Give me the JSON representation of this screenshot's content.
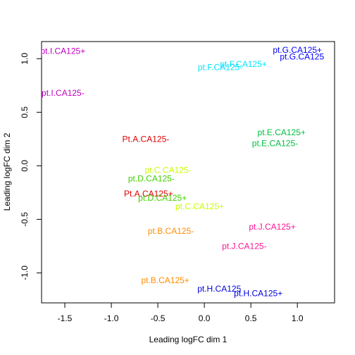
{
  "chart_data": {
    "type": "scatter",
    "title": "",
    "xlabel": "Leading logFC dim 1",
    "ylabel": "Leading logFC dim 2",
    "xlim": [
      -1.75,
      1.4
    ],
    "ylim": [
      -1.28,
      1.16
    ],
    "x_ticks": [
      -1.5,
      -1.0,
      -0.5,
      0.0,
      0.5,
      1.0
    ],
    "x_tick_labels": [
      "-1.5",
      "-1.0",
      "-0.5",
      "0.0",
      "0.5",
      "1.0"
    ],
    "y_ticks": [
      -1.0,
      -0.5,
      0.0,
      0.5,
      1.0
    ],
    "y_tick_labels": [
      "-1.0",
      "-0.5",
      "0.0",
      "0.5",
      "1.0"
    ],
    "grid": false,
    "points": [
      {
        "label": "pt.I.CA125+",
        "x": -1.52,
        "y": 1.07,
        "color": "#c000c0"
      },
      {
        "label": "pt.I.CA125-",
        "x": -1.52,
        "y": 0.68,
        "color": "#c000c0"
      },
      {
        "label": "pt.G.CA125+",
        "x": 1.0,
        "y": 1.08,
        "color": "#0000ff"
      },
      {
        "label": "pt.G.CA125",
        "x": 1.05,
        "y": 1.02,
        "color": "#0000ff"
      },
      {
        "label": "pt.F.CA125+",
        "x": 0.42,
        "y": 0.95,
        "color": "#00e5ff"
      },
      {
        "label": "pt.F.CA125-",
        "x": 0.17,
        "y": 0.92,
        "color": "#00e5ff"
      },
      {
        "label": "pt.E.CA125+",
        "x": 0.83,
        "y": 0.31,
        "color": "#00c040"
      },
      {
        "label": "pt.E.CA125-",
        "x": 0.76,
        "y": 0.21,
        "color": "#00c040"
      },
      {
        "label": "Pt.A.CA125-",
        "x": -0.63,
        "y": 0.25,
        "color": "#e00000"
      },
      {
        "label": "pt.C.CA125-",
        "x": -0.39,
        "y": -0.04,
        "color": "#c8ff00"
      },
      {
        "label": "pt.D.CA125-",
        "x": -0.57,
        "y": -0.12,
        "color": "#40d000"
      },
      {
        "label": "Pt.A.CA125+",
        "x": -0.6,
        "y": -0.26,
        "color": "#e00000"
      },
      {
        "label": "pt.D.CA125+",
        "x": -0.45,
        "y": -0.3,
        "color": "#40d000"
      },
      {
        "label": "pt.C.CA125+",
        "x": -0.05,
        "y": -0.38,
        "color": "#c8ff00"
      },
      {
        "label": "pt.J.CA125+",
        "x": 0.73,
        "y": -0.57,
        "color": "#ff1493"
      },
      {
        "label": "pt.B.CA125-",
        "x": -0.36,
        "y": -0.61,
        "color": "#ff8c00"
      },
      {
        "label": "pt.J.CA125-",
        "x": 0.43,
        "y": -0.75,
        "color": "#ff1493"
      },
      {
        "label": "pt.B.CA125+",
        "x": -0.42,
        "y": -1.07,
        "color": "#ff8c00"
      },
      {
        "label": "pt.H.CA125",
        "x": 0.16,
        "y": -1.15,
        "color": "#0000dd"
      },
      {
        "label": "pt.H.CA125+",
        "x": 0.58,
        "y": -1.19,
        "color": "#0000dd"
      }
    ]
  }
}
